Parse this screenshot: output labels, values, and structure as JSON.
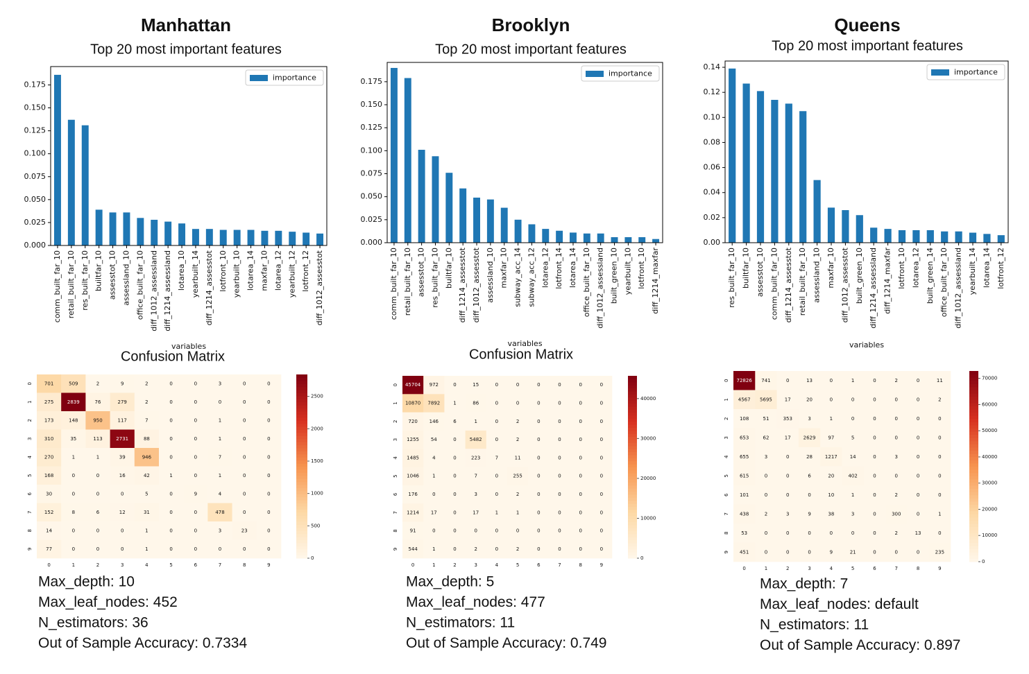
{
  "panels": [
    {
      "title": "Manhattan",
      "params": [
        "Max_depth: 10",
        "Max_leaf_nodes: 452",
        "N_estimators: 36",
        "Out of Sample Accuracy: 0.7334"
      ]
    },
    {
      "title": "Brooklyn",
      "params": [
        "Max_depth: 5",
        "Max_leaf_nodes: 477",
        "N_estimators: 11",
        "Out of Sample Accuracy: 0.749"
      ]
    },
    {
      "title": "Queens",
      "params": [
        "Max_depth: 7",
        "Max_leaf_nodes: default",
        "N_estimators: 11",
        "Out of Sample Accuracy: 0.897"
      ]
    }
  ],
  "chart_data": [
    {
      "type": "bar",
      "title": "Top 20 most important features",
      "xlabel": "variables",
      "categories": [
        "comm_built_far_10",
        "retail_built_far_10",
        "res_built_far_10",
        "builtfar_10",
        "assesstot_10",
        "assessland_10",
        "office_built_far_10",
        "diff_1012_assessland",
        "diff_1214_assessland",
        "lotarea_10",
        "yearbuilt_14",
        "diff_1214_assesstot",
        "lotfront_10",
        "yearbuilt_10",
        "lotarea_14",
        "maxfar_10",
        "lotarea_12",
        "yearbuilt_12",
        "lotfront_12",
        "diff_1012_assesstot"
      ],
      "series": [
        {
          "name": "importance",
          "color": "#1f77b4",
          "values": [
            0.186,
            0.137,
            0.131,
            0.039,
            0.036,
            0.036,
            0.03,
            0.028,
            0.026,
            0.024,
            0.018,
            0.018,
            0.017,
            0.017,
            0.017,
            0.016,
            0.016,
            0.015,
            0.014,
            0.013
          ]
        }
      ],
      "ylim": [
        0,
        0.195
      ],
      "yticks": [
        {
          "value": 0,
          "label": "0.000"
        },
        {
          "value": 0.025,
          "label": "0.025"
        },
        {
          "value": 0.05,
          "label": "0.050"
        },
        {
          "value": 0.075,
          "label": "0.075"
        },
        {
          "value": 0.1,
          "label": "0.100"
        },
        {
          "value": 0.125,
          "label": "0.125"
        },
        {
          "value": 0.15,
          "label": "0.150"
        },
        {
          "value": 0.175,
          "label": "0.175"
        }
      ],
      "legend": "upper right"
    },
    {
      "type": "heatmap",
      "title": "Confusion Matrix",
      "x": [
        0,
        1,
        2,
        3,
        4,
        5,
        6,
        7,
        8,
        9
      ],
      "y": [
        0,
        1,
        2,
        3,
        4,
        5,
        6,
        7,
        8,
        9
      ],
      "values": [
        [
          701,
          509,
          2,
          9,
          2,
          0,
          0,
          3,
          0,
          0
        ],
        [
          275,
          2839,
          76,
          279,
          2,
          0,
          0,
          0,
          0,
          0
        ],
        [
          173,
          148,
          950,
          117,
          7,
          0,
          0,
          1,
          0,
          0
        ],
        [
          310,
          35,
          113,
          2731,
          88,
          0,
          0,
          1,
          0,
          0
        ],
        [
          270,
          1,
          1,
          39,
          946,
          0,
          0,
          7,
          0,
          0
        ],
        [
          168,
          0,
          0,
          16,
          42,
          1,
          0,
          1,
          0,
          0
        ],
        [
          30,
          0,
          0,
          0,
          5,
          0,
          9,
          4,
          0,
          0
        ],
        [
          152,
          8,
          6,
          12,
          31,
          0,
          0,
          478,
          0,
          0
        ],
        [
          14,
          0,
          0,
          0,
          1,
          0,
          0,
          3,
          23,
          0
        ],
        [
          77,
          0,
          0,
          0,
          1,
          0,
          0,
          0,
          0,
          0
        ]
      ],
      "zlim": [
        0,
        2839
      ],
      "zticks": [
        0,
        500,
        1000,
        1500,
        2000,
        2500
      ],
      "colorscale": [
        "#fff7ea",
        "#fdd9a6",
        "#f7944f",
        "#d7301f",
        "#800010"
      ]
    },
    {
      "type": "bar",
      "title": "Top 20 most important features",
      "xlabel": "variables",
      "categories": [
        "comm_built_far_10",
        "retail_built_far_10",
        "assesstot_10",
        "res_built_far_10",
        "builtfar_10",
        "diff_1214_assesstot",
        "diff_1012_assesstot",
        "assessland_10",
        "maxfar_10",
        "subway_acc_14",
        "subway_acc_12",
        "lotarea_12",
        "lotfront_14",
        "lotarea_14",
        "office_built_far_10",
        "diff_1012_assessland",
        "built_green_10",
        "yearbuilt_10",
        "lotfront_10",
        "diff_1214_maxfar"
      ],
      "series": [
        {
          "name": "importance",
          "color": "#1f77b4",
          "values": [
            0.19,
            0.179,
            0.101,
            0.094,
            0.076,
            0.059,
            0.049,
            0.047,
            0.038,
            0.025,
            0.02,
            0.015,
            0.013,
            0.011,
            0.01,
            0.01,
            0.006,
            0.006,
            0.006,
            0.004
          ]
        }
      ],
      "ylim": [
        0,
        0.196
      ],
      "yticks": [
        {
          "value": 0,
          "label": "0.000"
        },
        {
          "value": 0.025,
          "label": "0.025"
        },
        {
          "value": 0.05,
          "label": "0.050"
        },
        {
          "value": 0.075,
          "label": "0.075"
        },
        {
          "value": 0.1,
          "label": "0.100"
        },
        {
          "value": 0.125,
          "label": "0.125"
        },
        {
          "value": 0.15,
          "label": "0.150"
        },
        {
          "value": 0.175,
          "label": "0.175"
        }
      ],
      "legend": "upper right"
    },
    {
      "type": "heatmap",
      "title": "Confusion Matrix",
      "x": [
        0,
        1,
        2,
        3,
        4,
        5,
        6,
        7,
        8,
        9
      ],
      "y": [
        0,
        1,
        2,
        3,
        4,
        5,
        6,
        7,
        8,
        9
      ],
      "values": [
        [
          45704,
          972,
          0,
          15,
          0,
          0,
          0,
          0,
          0,
          0
        ],
        [
          10870,
          7892,
          1,
          86,
          0,
          0,
          0,
          0,
          0,
          0
        ],
        [
          720,
          146,
          6,
          1,
          0,
          2,
          0,
          0,
          0,
          0
        ],
        [
          1255,
          54,
          0,
          5482,
          0,
          2,
          0,
          0,
          0,
          0
        ],
        [
          1485,
          4,
          0,
          223,
          7,
          11,
          0,
          0,
          0,
          0
        ],
        [
          1046,
          1,
          0,
          7,
          0,
          255,
          0,
          0,
          0,
          0
        ],
        [
          176,
          0,
          0,
          3,
          0,
          2,
          0,
          0,
          0,
          0
        ],
        [
          1214,
          17,
          0,
          17,
          1,
          1,
          0,
          0,
          0,
          0
        ],
        [
          91,
          0,
          0,
          0,
          0,
          0,
          0,
          0,
          0,
          0
        ],
        [
          544,
          1,
          0,
          2,
          0,
          2,
          0,
          0,
          0,
          0
        ]
      ],
      "zlim": [
        0,
        45704
      ],
      "zticks": [
        0,
        10000,
        20000,
        30000,
        40000
      ],
      "colorscale": [
        "#fff7ea",
        "#fdd9a6",
        "#f7944f",
        "#d7301f",
        "#800010"
      ]
    },
    {
      "type": "bar",
      "title": "Top 20 most important features",
      "xlabel": "variables",
      "categories": [
        "res_built_far_10",
        "builtfar_10",
        "assesstot_10",
        "comm_built_far_10",
        "diff_1214_assesstot",
        "retail_built_far_10",
        "assessland_10",
        "maxfar_10",
        "diff_1012_assesstot",
        "built_green_10",
        "diff_1214_assessland",
        "diff_1214_maxfar",
        "lotfront_10",
        "lotarea_12",
        "built_green_14",
        "office_built_far_10",
        "diff_1012_assessland",
        "yearbuilt_14",
        "lotarea_14",
        "lotfront_12"
      ],
      "series": [
        {
          "name": "importance",
          "color": "#1f77b4",
          "values": [
            0.139,
            0.127,
            0.121,
            0.114,
            0.111,
            0.105,
            0.05,
            0.028,
            0.026,
            0.022,
            0.012,
            0.011,
            0.01,
            0.01,
            0.01,
            0.009,
            0.009,
            0.008,
            0.007,
            0.006
          ]
        }
      ],
      "ylim": [
        0,
        0.145
      ],
      "yticks": [
        {
          "value": 0,
          "label": "0.00"
        },
        {
          "value": 0.02,
          "label": "0.02"
        },
        {
          "value": 0.04,
          "label": "0.04"
        },
        {
          "value": 0.06,
          "label": "0.06"
        },
        {
          "value": 0.08,
          "label": "0.08"
        },
        {
          "value": 0.1,
          "label": "0.10"
        },
        {
          "value": 0.12,
          "label": "0.12"
        },
        {
          "value": 0.14,
          "label": "0.14"
        }
      ],
      "legend": "upper right"
    },
    {
      "type": "heatmap",
      "x": [
        0,
        1,
        2,
        3,
        4,
        5,
        6,
        7,
        8,
        9
      ],
      "y": [
        0,
        1,
        2,
        3,
        4,
        5,
        6,
        7,
        8,
        9
      ],
      "values": [
        [
          72826,
          741,
          0,
          13,
          0,
          1,
          0,
          2,
          0,
          11
        ],
        [
          4567,
          5695,
          17,
          20,
          0,
          0,
          0,
          0,
          0,
          2
        ],
        [
          108,
          51,
          353,
          3,
          1,
          0,
          0,
          0,
          0,
          0
        ],
        [
          653,
          62,
          17,
          2629,
          97,
          5,
          0,
          0,
          0,
          0
        ],
        [
          655,
          3,
          0,
          28,
          1217,
          14,
          0,
          3,
          0,
          0
        ],
        [
          615,
          0,
          0,
          6,
          20,
          402,
          0,
          0,
          0,
          0
        ],
        [
          101,
          0,
          0,
          0,
          10,
          1,
          0,
          2,
          0,
          0
        ],
        [
          438,
          2,
          3,
          9,
          38,
          3,
          0,
          300,
          0,
          1
        ],
        [
          53,
          0,
          0,
          0,
          0,
          0,
          0,
          2,
          13,
          0
        ],
        [
          451,
          0,
          0,
          0,
          9,
          21,
          0,
          0,
          0,
          235
        ]
      ],
      "zlim": [
        0,
        72826
      ],
      "zticks": [
        0,
        10000,
        20000,
        30000,
        40000,
        50000,
        60000,
        70000
      ],
      "colorscale": [
        "#fff7ea",
        "#fdd9a6",
        "#f7944f",
        "#d7301f",
        "#800010"
      ]
    }
  ]
}
